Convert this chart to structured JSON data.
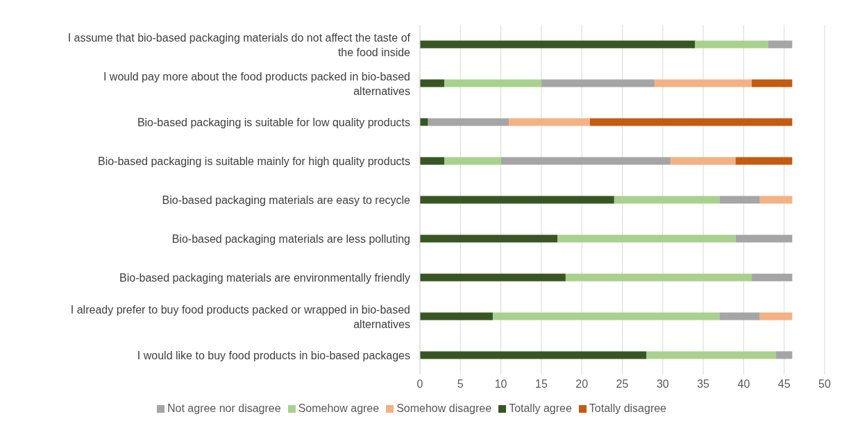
{
  "chart_data": {
    "type": "bar",
    "orientation": "horizontal",
    "stacked": true,
    "categories": [
      "I assume that bio-based packaging materials do not affect the taste of the food inside",
      "I would pay more about the food products packed in bio-based alternatives",
      "Bio-based packaging is suitable for low quality products",
      "Bio-based packaging is suitable mainly for high quality products",
      "Bio-based packaging materials are easy to recycle",
      "Bio-based packaging materials are less polluting",
      "Bio-based packaging materials are environmentally friendly",
      "I already prefer to buy food products packed or wrapped in bio-based alternatives",
      "I would like to buy food products in bio-based packages"
    ],
    "series": [
      {
        "name": "Totally agree",
        "color": "#375623",
        "values": [
          34,
          3,
          1,
          3,
          24,
          17,
          18,
          9,
          28
        ]
      },
      {
        "name": "Somehow agree",
        "color": "#a9d18e",
        "values": [
          9,
          12,
          0,
          7,
          13,
          22,
          23,
          28,
          16
        ]
      },
      {
        "name": "Not agree nor disagree",
        "color": "#a5a5a5",
        "values": [
          3,
          14,
          10,
          21,
          5,
          7,
          5,
          5,
          2
        ]
      },
      {
        "name": "Somehow disagree",
        "color": "#f4b183",
        "values": [
          0,
          12,
          10,
          8,
          4,
          0,
          0,
          4,
          0
        ]
      },
      {
        "name": "Totally disagree",
        "color": "#c55a11",
        "values": [
          0,
          5,
          25,
          7,
          0,
          0,
          0,
          0,
          0
        ]
      }
    ],
    "xlim": [
      0,
      50
    ],
    "xticks": [
      0,
      5,
      10,
      15,
      20,
      25,
      30,
      35,
      40,
      45,
      50
    ],
    "grid": "x",
    "legend": "bottom"
  }
}
